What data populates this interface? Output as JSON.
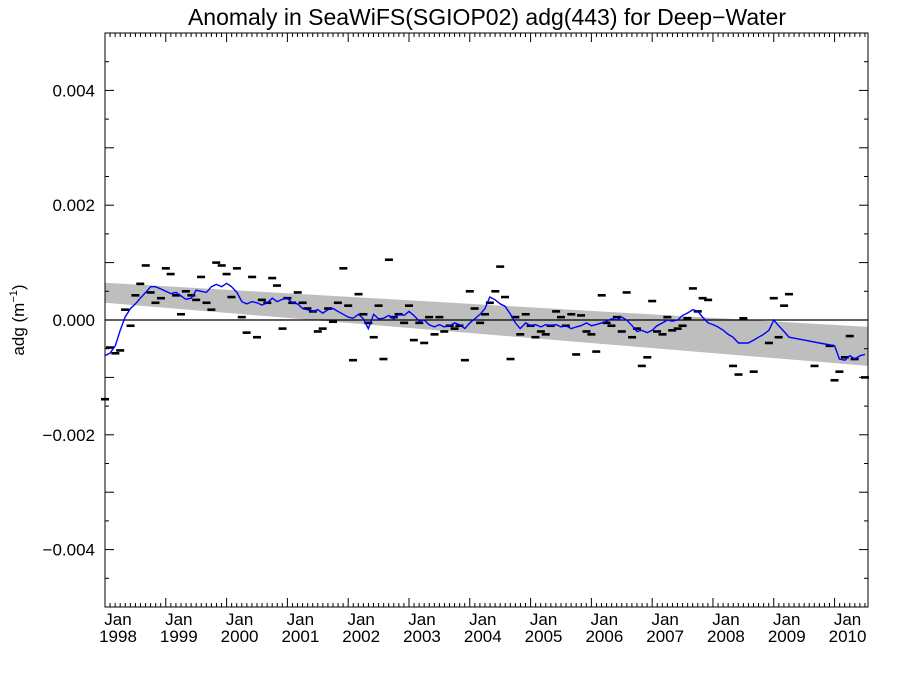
{
  "chart_data": {
    "type": "scatter",
    "title": "Anomaly in SeaWiFS(SGIOP02) adg(443) for Deep−Water",
    "ylabel": "adg (m",
    "ylabel_sup": "−1",
    "ylabel_tail": ")",
    "xlabel": "",
    "xlim": [
      1998.0,
      2010.55
    ],
    "ylim": [
      -0.005,
      0.005
    ],
    "y_ticks": [
      {
        "value": 0.004,
        "label": "0.004"
      },
      {
        "value": 0.002,
        "label": "0.002"
      },
      {
        "value": 0.0,
        "label": "0.000"
      },
      {
        "value": -0.002,
        "label": "−0.002"
      },
      {
        "value": -0.004,
        "label": "−0.004"
      }
    ],
    "x_ticks": [
      {
        "value": 1998,
        "month": "Jan",
        "year": "1998"
      },
      {
        "value": 1999,
        "month": "Jan",
        "year": "1999"
      },
      {
        "value": 2000,
        "month": "Jan",
        "year": "2000"
      },
      {
        "value": 2001,
        "month": "Jan",
        "year": "2001"
      },
      {
        "value": 2002,
        "month": "Jan",
        "year": "2002"
      },
      {
        "value": 2003,
        "month": "Jan",
        "year": "2003"
      },
      {
        "value": 2004,
        "month": "Jan",
        "year": "2004"
      },
      {
        "value": 2005,
        "month": "Jan",
        "year": "2005"
      },
      {
        "value": 2006,
        "month": "Jan",
        "year": "2006"
      },
      {
        "value": 2007,
        "month": "Jan",
        "year": "2007"
      },
      {
        "value": 2008,
        "month": "Jan",
        "year": "2008"
      },
      {
        "value": 2009,
        "month": "Jan",
        "year": "2009"
      },
      {
        "value": 2010,
        "month": "Jan",
        "year": "2010"
      }
    ],
    "zero_line": 0.0,
    "trend_band": {
      "x": [
        1998.0,
        2010.55
      ],
      "upper": [
        0.00065,
        -0.00012
      ],
      "lower": [
        0.0003,
        -0.0008
      ],
      "color": "#bebebe"
    },
    "monthly_points": {
      "color": "#000000",
      "points": [
        [
          1998.0,
          -0.00138
        ],
        [
          1998.08,
          -0.00048
        ],
        [
          1998.17,
          -0.00058
        ],
        [
          1998.25,
          -0.00053
        ],
        [
          1998.33,
          0.00018
        ],
        [
          1998.42,
          -0.0001
        ],
        [
          1998.5,
          0.00043
        ],
        [
          1998.58,
          0.00063
        ],
        [
          1998.67,
          0.00095
        ],
        [
          1998.75,
          0.00048
        ],
        [
          1998.83,
          0.0003
        ],
        [
          1998.92,
          0.00038
        ],
        [
          1999.0,
          0.0009
        ],
        [
          1999.08,
          0.0008
        ],
        [
          1999.17,
          0.00043
        ],
        [
          1999.25,
          0.0001
        ],
        [
          1999.33,
          0.0005
        ],
        [
          1999.42,
          0.00043
        ],
        [
          1999.5,
          0.00035
        ],
        [
          1999.58,
          0.00075
        ],
        [
          1999.67,
          0.0003
        ],
        [
          1999.75,
          0.00018
        ],
        [
          1999.83,
          0.001
        ],
        [
          1999.92,
          0.00095
        ],
        [
          2000.0,
          0.0008
        ],
        [
          2000.08,
          0.0004
        ],
        [
          2000.17,
          0.0009
        ],
        [
          2000.25,
          5e-05
        ],
        [
          2000.33,
          -0.00022
        ],
        [
          2000.42,
          0.00075
        ],
        [
          2000.5,
          -0.0003
        ],
        [
          2000.58,
          0.00035
        ],
        [
          2000.67,
          0.0003
        ],
        [
          2000.75,
          0.00073
        ],
        [
          2000.83,
          0.0006
        ],
        [
          2000.92,
          -0.00015
        ],
        [
          2001.0,
          0.00038
        ],
        [
          2001.08,
          0.0003
        ],
        [
          2001.17,
          0.00048
        ],
        [
          2001.25,
          0.0003
        ],
        [
          2001.33,
          0.0002
        ],
        [
          2001.42,
          0.00015
        ],
        [
          2001.5,
          -0.0002
        ],
        [
          2001.58,
          -0.00015
        ],
        [
          2001.67,
          0.0002
        ],
        [
          2001.75,
          -3e-05
        ],
        [
          2001.83,
          0.0003
        ],
        [
          2001.92,
          0.0009
        ],
        [
          2002.0,
          0.00025
        ],
        [
          2002.08,
          -0.0007
        ],
        [
          2002.17,
          0.00045
        ],
        [
          2002.25,
          0.0001
        ],
        [
          2002.33,
          -5e-05
        ],
        [
          2002.42,
          -0.0003
        ],
        [
          2002.5,
          0.00025
        ],
        [
          2002.58,
          -0.00068
        ],
        [
          2002.67,
          0.00105
        ],
        [
          2002.75,
          5e-05
        ],
        [
          2002.83,
          0.0001
        ],
        [
          2002.92,
          -5e-05
        ],
        [
          2003.0,
          0.00025
        ],
        [
          2003.08,
          -0.00035
        ],
        [
          2003.17,
          -5e-05
        ],
        [
          2003.25,
          -0.0004
        ],
        [
          2003.33,
          5e-05
        ],
        [
          2003.42,
          -0.00025
        ],
        [
          2003.5,
          5e-05
        ],
        [
          2003.58,
          -0.0002
        ],
        [
          2003.67,
          -0.0001
        ],
        [
          2003.75,
          -0.00015
        ],
        [
          2003.83,
          -0.0001
        ],
        [
          2003.92,
          -0.0007
        ],
        [
          2004.0,
          0.0005
        ],
        [
          2004.08,
          0.0002
        ],
        [
          2004.17,
          -5e-05
        ],
        [
          2004.25,
          0.0001
        ],
        [
          2004.33,
          0.0003
        ],
        [
          2004.42,
          0.0005
        ],
        [
          2004.5,
          0.00093
        ],
        [
          2004.58,
          0.0004
        ],
        [
          2004.67,
          -0.00068
        ],
        [
          2004.75,
          5e-05
        ],
        [
          2004.83,
          -0.00025
        ],
        [
          2004.92,
          0.0001
        ],
        [
          2005.0,
          -0.0001
        ],
        [
          2005.08,
          -0.0003
        ],
        [
          2005.17,
          -0.0002
        ],
        [
          2005.25,
          -0.00025
        ],
        [
          2005.33,
          -0.0001
        ],
        [
          2005.42,
          0.00015
        ],
        [
          2005.5,
          5e-05
        ],
        [
          2005.58,
          -0.0001
        ],
        [
          2005.67,
          0.0001
        ],
        [
          2005.75,
          -0.0006
        ],
        [
          2005.83,
          8e-05
        ],
        [
          2005.92,
          -0.0002
        ],
        [
          2006.0,
          -0.00025
        ],
        [
          2006.08,
          -0.00055
        ],
        [
          2006.17,
          0.00043
        ],
        [
          2006.25,
          -5e-05
        ],
        [
          2006.33,
          -0.0001
        ],
        [
          2006.42,
          5e-05
        ],
        [
          2006.5,
          -0.0002
        ],
        [
          2006.58,
          0.00048
        ],
        [
          2006.67,
          -0.0003
        ],
        [
          2006.75,
          -0.00015
        ],
        [
          2006.83,
          -0.0008
        ],
        [
          2006.92,
          -0.00065
        ],
        [
          2007.0,
          0.00033
        ],
        [
          2007.08,
          -0.0002
        ],
        [
          2007.17,
          -0.00025
        ],
        [
          2007.25,
          5e-05
        ],
        [
          2007.33,
          -0.00018
        ],
        [
          2007.42,
          -0.00015
        ],
        [
          2007.5,
          -0.0001
        ],
        [
          2007.58,
          3e-05
        ],
        [
          2007.67,
          0.00055
        ],
        [
          2007.75,
          0.00015
        ],
        [
          2007.83,
          0.00038
        ],
        [
          2007.92,
          0.00035
        ],
        [
          2008.33,
          -0.0008
        ],
        [
          2008.42,
          -0.00095
        ],
        [
          2008.5,
          3e-05
        ],
        [
          2008.67,
          -0.0009
        ],
        [
          2008.92,
          -0.0004
        ],
        [
          2009.0,
          0.00038
        ],
        [
          2009.08,
          -0.0003
        ],
        [
          2009.17,
          0.00025
        ],
        [
          2009.25,
          0.00045
        ],
        [
          2009.67,
          -0.0008
        ],
        [
          2009.92,
          -0.00045
        ],
        [
          2010.0,
          -0.00105
        ],
        [
          2010.08,
          -0.0009
        ],
        [
          2010.17,
          -0.00065
        ],
        [
          2010.25,
          -0.00028
        ],
        [
          2010.33,
          -0.00068
        ],
        [
          2010.5,
          -0.001
        ]
      ]
    },
    "running_mean": {
      "color": "#0000ff",
      "x": [
        1998.0,
        1998.08,
        1998.17,
        1998.25,
        1998.33,
        1998.42,
        1998.5,
        1998.58,
        1998.67,
        1998.75,
        1998.83,
        1998.92,
        1999.0,
        1999.08,
        1999.17,
        1999.25,
        1999.33,
        1999.42,
        1999.5,
        1999.58,
        1999.67,
        1999.75,
        1999.83,
        1999.92,
        2000.0,
        2000.08,
        2000.17,
        2000.25,
        2000.33,
        2000.42,
        2000.5,
        2000.58,
        2000.67,
        2000.75,
        2000.83,
        2000.92,
        2001.0,
        2001.08,
        2001.17,
        2001.25,
        2001.33,
        2001.42,
        2001.5,
        2001.58,
        2001.67,
        2001.75,
        2001.83,
        2001.92,
        2002.0,
        2002.08,
        2002.17,
        2002.25,
        2002.33,
        2002.42,
        2002.5,
        2002.58,
        2002.67,
        2002.75,
        2002.83,
        2002.92,
        2003.0,
        2003.08,
        2003.17,
        2003.25,
        2003.33,
        2003.42,
        2003.5,
        2003.58,
        2003.67,
        2003.75,
        2003.83,
        2003.92,
        2004.0,
        2004.08,
        2004.17,
        2004.25,
        2004.33,
        2004.42,
        2004.5,
        2004.58,
        2004.67,
        2004.75,
        2004.83,
        2004.92,
        2005.0,
        2005.08,
        2005.17,
        2005.25,
        2005.33,
        2005.42,
        2005.5,
        2005.58,
        2005.67,
        2005.75,
        2005.83,
        2005.92,
        2006.0,
        2006.08,
        2006.17,
        2006.25,
        2006.33,
        2006.42,
        2006.5,
        2006.58,
        2006.67,
        2006.75,
        2006.83,
        2006.92,
        2007.0,
        2007.08,
        2007.17,
        2007.25,
        2007.33,
        2007.42,
        2007.5,
        2007.58,
        2007.67,
        2007.75,
        2007.83,
        2007.92,
        2008.0,
        2008.08,
        2008.17,
        2008.25,
        2008.33,
        2008.42,
        2008.5,
        2008.58,
        2008.67,
        2008.75,
        2008.83,
        2008.92,
        2009.0,
        2009.08,
        2009.17,
        2009.25,
        2009.5,
        2009.75,
        2010.0,
        2010.08,
        2010.17,
        2010.25,
        2010.33,
        2010.42,
        2010.5
      ],
      "y": [
        -0.00062,
        -0.00058,
        -0.00045,
        -0.00018,
        5e-05,
        0.0002,
        0.00028,
        0.00038,
        0.00048,
        0.00058,
        0.00058,
        0.00054,
        0.0005,
        0.00046,
        0.00048,
        0.00042,
        0.00036,
        0.00038,
        0.00052,
        0.0005,
        0.00048,
        0.00058,
        0.00062,
        0.00058,
        0.00064,
        0.00058,
        0.00048,
        0.00032,
        0.00028,
        0.00032,
        0.0003,
        0.00026,
        0.0003,
        0.00038,
        0.00032,
        0.00036,
        0.00038,
        0.0003,
        0.00028,
        0.0002,
        0.00018,
        0.00015,
        0.00018,
        0.00012,
        0.00018,
        0.0002,
        0.00015,
        0.0001,
        5e-05,
        3e-05,
        0.0001,
        2e-05,
        -0.00015,
        0.0001,
        2e-05,
        3e-05,
        8e-05,
        2e-05,
        0.0001,
        8e-05,
        0.00015,
        8e-05,
        -2e-05,
        0.0,
        -8e-05,
        -0.00012,
        -8e-05,
        -0.00012,
        -0.0001,
        -5e-05,
        -8e-05,
        -0.00015,
        -5e-05,
        2e-05,
        0.0001,
        0.0002,
        0.0004,
        0.00035,
        0.00028,
        0.00024,
        0.0001,
        -5e-05,
        -0.00015,
        -5e-05,
        -0.0001,
        -8e-05,
        -0.00012,
        -8e-05,
        -0.0001,
        -8e-05,
        -0.00012,
        -0.0001,
        -0.00015,
        -0.00012,
        -0.0001,
        -5e-05,
        -0.0001,
        -8e-05,
        -5e-05,
        -2e-05,
        2e-05,
        0.0,
        5e-05,
        0.0,
        -0.0001,
        -0.0002,
        -0.00018,
        -0.00022,
        -0.00018,
        -0.0001,
        -5e-05,
        0.0,
        -2e-05,
        0.0,
        8e-05,
        0.00012,
        0.00018,
        0.00015,
        5e-05,
        -5e-05,
        -8e-05,
        -0.00012,
        -0.00018,
        -0.00025,
        -0.0003,
        -0.0004,
        -0.0004,
        -0.0004,
        -0.00035,
        -0.0003,
        -0.00025,
        -0.00018,
        0.0,
        -0.0001,
        -0.0002,
        -0.0003,
        -0.00035,
        -0.0004,
        -0.00045,
        -0.00068,
        -0.0007,
        -0.00062,
        -0.00068,
        -0.00062,
        -0.0006
      ]
    }
  }
}
